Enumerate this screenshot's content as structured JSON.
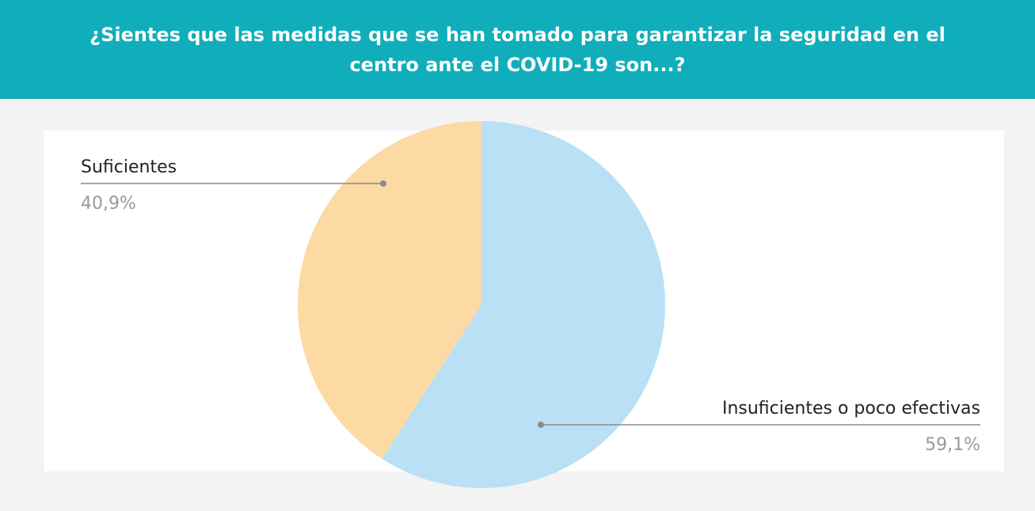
{
  "chart_data": {
    "type": "pie",
    "title": "¿Sientes que las medidas que se han tomado para garantizar la seguridad en el centro ante el COVID-19 son...?",
    "categories": [
      "Insuficientes o poco efectivas",
      "Suficientes"
    ],
    "values": [
      59.1,
      40.9
    ],
    "value_labels": [
      "59,1%",
      "40,9%"
    ],
    "colors": [
      "#b9e0f4",
      "#fdd9a3"
    ]
  }
}
